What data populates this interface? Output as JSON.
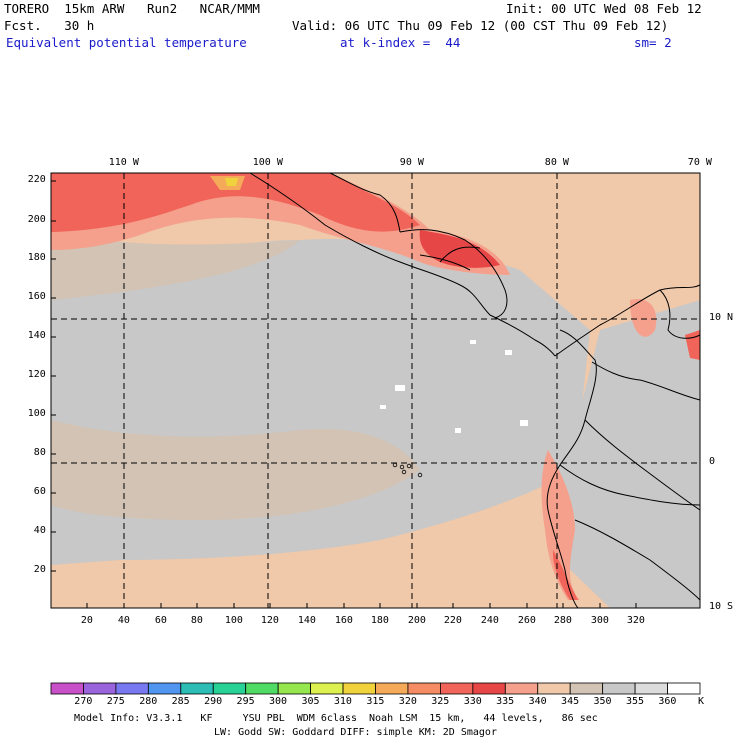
{
  "header": {
    "model": "TORERO  15km ARW   Run2   NCAR/MMM",
    "init": "Init: 00 UTC Wed 08 Feb 12",
    "forecast": "Fcst.   30 h",
    "valid": "Valid: 06 UTC Thu 09 Feb 12 (00 CST Thu 09 Feb 12)",
    "field": "Equivalent potential temperature",
    "level": "at k-index =  44",
    "smoothing": "sm= 2"
  },
  "map": {
    "top_lon_labels": [
      "110 W",
      "100 W",
      "90 W",
      "80 W",
      "70 W"
    ],
    "right_lat_labels": [
      "10 N",
      "0",
      "10 S"
    ],
    "y_ticks": [
      "220",
      "200",
      "180",
      "160",
      "140",
      "120",
      "100",
      "80",
      "60",
      "40",
      "20"
    ],
    "x_ticks": [
      "20",
      "40",
      "60",
      "80",
      "100",
      "120",
      "140",
      "160",
      "180",
      "200",
      "220",
      "240",
      "260",
      "280",
      "300",
      "320"
    ]
  },
  "colorbar": {
    "unit": "K",
    "labels": [
      "270",
      "275",
      "280",
      "285",
      "290",
      "295",
      "300",
      "305",
      "310",
      "315",
      "320",
      "325",
      "330",
      "335",
      "340",
      "345",
      "350",
      "355",
      "360"
    ],
    "colors": [
      "#c850c8",
      "#9a64dc",
      "#7878f0",
      "#5096f0",
      "#2cbeb4",
      "#28d296",
      "#50dc64",
      "#96e650",
      "#dcf050",
      "#f0d23c",
      "#f5aa5a",
      "#f58c64",
      "#f0645a",
      "#e64646",
      "#f5a08c",
      "#f0c8aa",
      "#d2c3b4",
      "#c8c8c8",
      "#dcdcdc",
      "#ffffff"
    ]
  },
  "footer": {
    "line1": "Model Info: V3.3.1   KF     YSU PBL  WDM 6class  Noah LSM  15 km,   44 levels,   86 sec",
    "line2": "LW: Godd SW: Goddard DIFF: simple KM: 2D Smagor"
  }
}
